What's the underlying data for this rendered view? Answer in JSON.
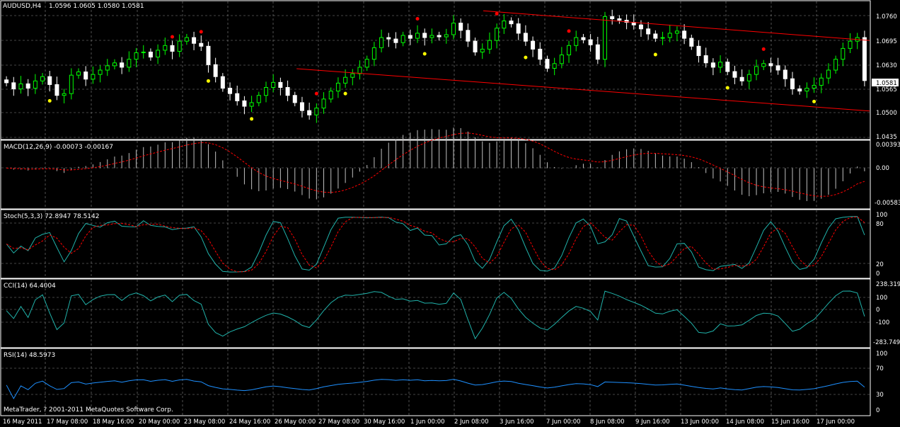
{
  "window": {
    "symbol_label": "AUDUSD,H4",
    "ohlc_label": "1.0596 1.0605 1.0580 1.0581",
    "copyright": "MetaTrader, ? 2001-2011 MetaQuotes Software Corp."
  },
  "colors": {
    "background": "#000000",
    "bull_candle": "#00ff00",
    "bear_candle": "#ffffff",
    "channel_line": "#ff0000",
    "fractal_up": "#ff0000",
    "fractal_down": "#ffff00",
    "macd_hist": "#c0c0c0",
    "macd_signal": "#ff0000",
    "stoch_main": "#20b2aa",
    "stoch_signal": "#ff0000",
    "cci": "#20b2aa",
    "rsi": "#1e90ff",
    "grid": "#888888",
    "current_price_tag": "#ffffff"
  },
  "panes": {
    "price": {
      "axis_ticks": [
        "1.0760",
        "1.0695",
        "1.0630",
        "1.0565",
        "1.0500",
        "1.0435"
      ],
      "current_price": "1.0581"
    },
    "macd": {
      "label": "MACD(12,26,9) -0.00073 -0.00167",
      "axis_ticks": [
        "0.00393",
        "0.00",
        "-0.00583"
      ]
    },
    "stoch": {
      "label": "Stoch(5,3,3) 72.8947 78.5142",
      "axis_ticks": [
        "100",
        "80",
        "20",
        "0"
      ]
    },
    "cci": {
      "label": "CCI(14) 64.4004",
      "axis_ticks": [
        "238.319",
        "100",
        "0",
        "-100",
        "-283.749"
      ]
    },
    "rsi": {
      "label": "RSI(14) 48.5973",
      "axis_ticks": [
        "100",
        "70",
        "30",
        "0"
      ]
    }
  },
  "time_axis": [
    "16 May 2011",
    "17 May 08:00",
    "18 May 16:00",
    "20 May 00:00",
    "23 May 08:00",
    "24 May 16:00",
    "26 May 00:00",
    "27 May 08:00",
    "30 May 16:00",
    "1 Jun 00:00",
    "2 Jun 08:00",
    "3 Jun 16:00",
    "7 Jun 00:00",
    "8 Jun 08:00",
    "9 Jun 16:00",
    "13 Jun 00:00",
    "14 Jun 08:00",
    "15 Jun 16:00",
    "17 Jun 00:00"
  ],
  "price_series": {
    "bars_visible": 120,
    "closes": [
      1.0575,
      1.0558,
      1.0572,
      1.056,
      1.058,
      1.0592,
      1.057,
      1.054,
      1.0545,
      1.0596,
      1.0605,
      1.0585,
      1.0598,
      1.061,
      1.0622,
      1.063,
      1.0618,
      1.064,
      1.0658,
      1.066,
      1.0646,
      1.0665,
      1.0678,
      1.0662,
      1.069,
      1.07,
      1.0684,
      1.0676,
      1.0625,
      1.0592,
      1.056,
      1.0545,
      1.0525,
      1.051,
      1.052,
      1.054,
      1.0562,
      1.0576,
      1.0562,
      1.054,
      1.052,
      1.0498,
      1.0486,
      1.0505,
      1.053,
      1.0552,
      1.0574,
      1.059,
      1.06,
      1.0618,
      1.064,
      1.0672,
      1.07,
      1.0696,
      1.0686,
      1.0706,
      1.0698,
      1.0712,
      1.07,
      1.0706,
      1.0702,
      1.0708,
      1.074,
      1.072,
      1.069,
      1.066,
      1.0668,
      1.0692,
      1.0726,
      1.0746,
      1.0738,
      1.0712,
      1.069,
      1.0668,
      1.064,
      1.0615,
      1.0628,
      1.0652,
      1.0678,
      1.07,
      1.0694,
      1.068,
      1.064,
      1.0758,
      1.0752,
      1.0748,
      1.0742,
      1.0735,
      1.0724,
      1.071,
      1.0698,
      1.07,
      1.0712,
      1.0718,
      1.0698,
      1.0676,
      1.065,
      1.063,
      1.0618,
      1.0632,
      1.0606,
      1.059,
      1.058,
      1.0598,
      1.062,
      1.0628,
      1.0622,
      1.061,
      1.0586,
      1.0558,
      1.0552,
      1.056,
      1.0568,
      1.0588,
      1.061,
      1.064,
      1.067,
      1.069,
      1.07,
      1.0581
    ],
    "channel_upper": [
      [
        0.555,
        1.0774
      ],
      [
        1.0,
        1.0692
      ]
    ],
    "channel_lower": [
      [
        0.34,
        1.0614
      ],
      [
        1.0,
        1.0497
      ]
    ]
  }
}
